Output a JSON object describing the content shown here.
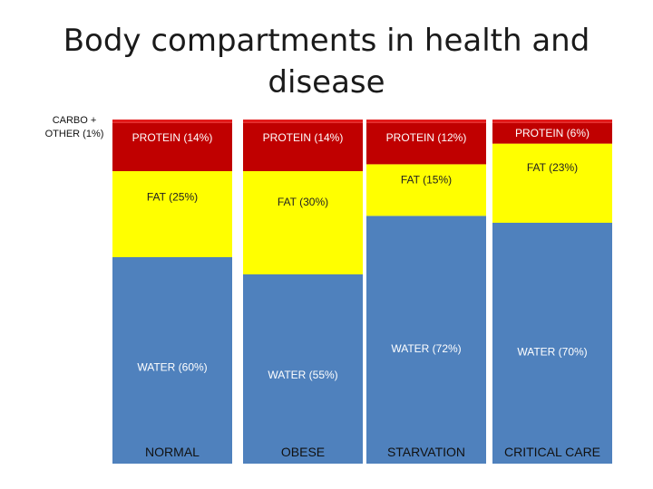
{
  "slide": {
    "title": "Body compartments in health and disease",
    "side_label": "CARBO + OTHER (1%)"
  },
  "colors": {
    "water": "#4F81BD",
    "fat": "#FFFF00",
    "protein": "#C00000",
    "other": "#E31B1B",
    "label_light": "#FFFFFF",
    "label_dark": "#222222"
  },
  "chart_data": {
    "type": "bar",
    "stacked": true,
    "normalized": true,
    "categories": [
      "NORMAL",
      "OBESE",
      "STARVATION",
      "CRITICAL CARE"
    ],
    "series": [
      {
        "key": "water",
        "values": [
          60,
          55,
          72,
          70
        ],
        "labels": [
          "WATER (60%)",
          "WATER (55%)",
          "WATER (72%)",
          "WATER (70%)"
        ]
      },
      {
        "key": "fat",
        "values": [
          25,
          30,
          15,
          23
        ],
        "labels": [
          "FAT (25%)",
          "FAT (30%)",
          "FAT (15%)",
          "FAT (23%)"
        ]
      },
      {
        "key": "protein",
        "values": [
          14,
          14,
          12,
          6
        ],
        "labels": [
          "PROTEIN (14%)",
          "PROTEIN (14%)",
          "PROTEIN (12%)",
          "PROTEIN (6%)"
        ]
      },
      {
        "key": "other",
        "values": [
          1,
          1,
          1,
          1
        ],
        "labels": [
          "",
          "",
          "",
          ""
        ]
      }
    ],
    "title": "Body compartments in health and disease",
    "xlabel": "",
    "ylabel": "",
    "ylim": [
      0,
      100
    ],
    "grid": false,
    "legend": "none"
  }
}
